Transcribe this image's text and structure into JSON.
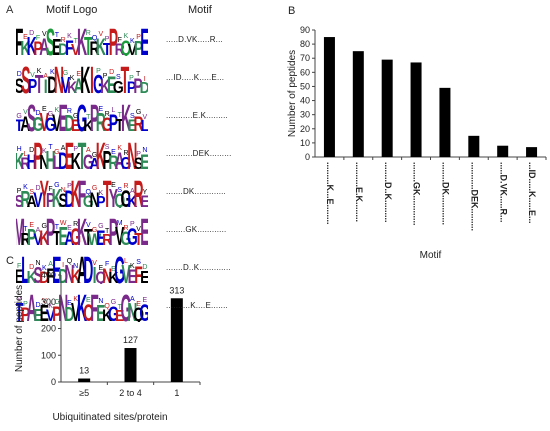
{
  "panel_a": {
    "letter": "A",
    "logo_header": "Motif Logo",
    "motif_header": "Motif",
    "rows": [
      {
        "motif": ".....D.VK.....R...",
        "logo_text": "FKKPASEDFVKTRKTPRQVPE",
        "colors": [
          "#000000",
          "#2e8b57",
          "#0000cc",
          "#c51b1b",
          "#7a2a8a",
          "#1a9a3a"
        ]
      },
      {
        "motif": "...ID.....K.....E...",
        "logo_text": "SSPTIDNVKAKIGKEGTPPD",
        "colors": [
          "#2e8b57",
          "#000000",
          "#c51b1b",
          "#0000cc",
          "#7a2a8a"
        ]
      },
      {
        "motif": "...........E.K.........",
        "logo_text": "TASGVGVEDEGKPRGPTKERL",
        "colors": [
          "#2e8b57",
          "#c51b1b",
          "#0000cc",
          "#000000",
          "#7a2a8a"
        ]
      },
      {
        "motif": "...........DEK.........",
        "logo_text": "KRHPNHLDEKTGAKPRAGNSE",
        "colors": [
          "#0000cc",
          "#c51b1b",
          "#000000",
          "#2e8b57",
          "#7a2a8a"
        ]
      },
      {
        "motif": ".......DK.............",
        "logo_text": "SRAVYPKSDKFGNPTYQGKRE",
        "colors": [
          "#2e8b57",
          "#000000",
          "#0000cc",
          "#c51b1b",
          "#7a2a8a"
        ]
      },
      {
        "motif": "........GK............",
        "logo_text": "MRPVKPTEAGKTWERPVGGTE",
        "colors": [
          "#7a2a8a",
          "#000000",
          "#2e8b57",
          "#0000cc",
          "#c51b1b"
        ]
      },
      {
        "motif": ".......D..K.............",
        "logo_text": "ELKSDFEDNKADIQNKGVEFE",
        "colors": [
          "#c51b1b",
          "#000000",
          "#0000cc",
          "#2e8b57",
          "#7a2a8a"
        ]
      },
      {
        "motif": "..........K....E.......",
        "logo_text": "TPAEEVPNDVKCFEKGEGNQG",
        "colors": [
          "#2e8b57",
          "#000000",
          "#0000cc",
          "#c51b1b",
          "#7a2a8a"
        ]
      }
    ]
  },
  "chart_data": [
    {
      "panel": "B",
      "type": "bar",
      "categories": [
        ".........K...E........",
        "..........E.K........",
        "........D..K.........",
        "........GK............",
        "........DK............",
        "...........DEK.........",
        ".....D.VK.....R...",
        "...ID.....K.....E..."
      ],
      "values": [
        85,
        75,
        69,
        67,
        49,
        15,
        8,
        7
      ],
      "title": "",
      "xlabel": "Motif",
      "ylabel": "Number of peptides",
      "ylim": [
        0,
        90
      ],
      "yticks": [
        0,
        10,
        20,
        30,
        40,
        50,
        60,
        70,
        80,
        90
      ],
      "grid": false,
      "bar_color": "#000000"
    },
    {
      "panel": "C",
      "type": "bar",
      "categories": [
        "≥5",
        "2 to 4",
        "1"
      ],
      "values": [
        13,
        127,
        313
      ],
      "data_labels": [
        "13",
        "127",
        "313"
      ],
      "title": "",
      "xlabel": "Ubiquitinated sites/protein",
      "ylabel": "Number of peptides",
      "ylim": [
        0,
        400
      ],
      "yticks": [
        0,
        100,
        200,
        300,
        400
      ],
      "grid": false,
      "bar_color": "#000000"
    }
  ]
}
